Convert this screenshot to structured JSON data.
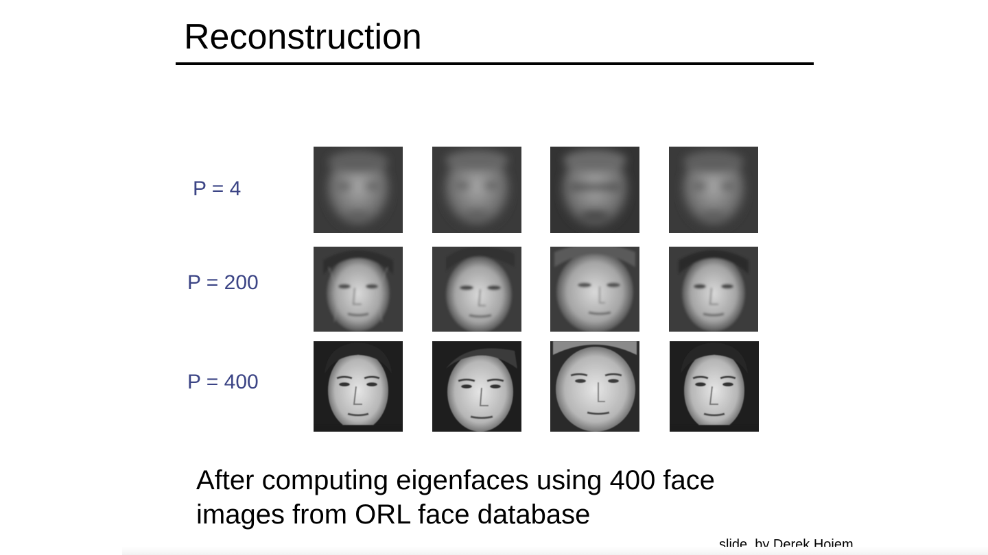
{
  "slide": {
    "title": "Reconstruction",
    "rows": [
      {
        "label": "P = 4",
        "style": "blurry",
        "faces": [
          "face-1-p4",
          "face-2-p4",
          "face-3-p4",
          "face-4-p4"
        ]
      },
      {
        "label": "P = 200",
        "style": "partial",
        "faces": [
          "face-1-p200",
          "face-2-p200",
          "face-3-p200",
          "face-4-p200"
        ]
      },
      {
        "label": "P = 400",
        "style": "sharp",
        "faces": [
          "face-1-p400",
          "face-2-p400",
          "face-3-p400",
          "face-4-p400"
        ]
      }
    ],
    "caption_line1": "After computing eigenfaces using 400 face",
    "caption_line2": "images from ORL face database",
    "credit": "slide  by Derek Hoiem"
  },
  "colors": {
    "label_color": "#3b4485",
    "rule_color": "#000000"
  }
}
